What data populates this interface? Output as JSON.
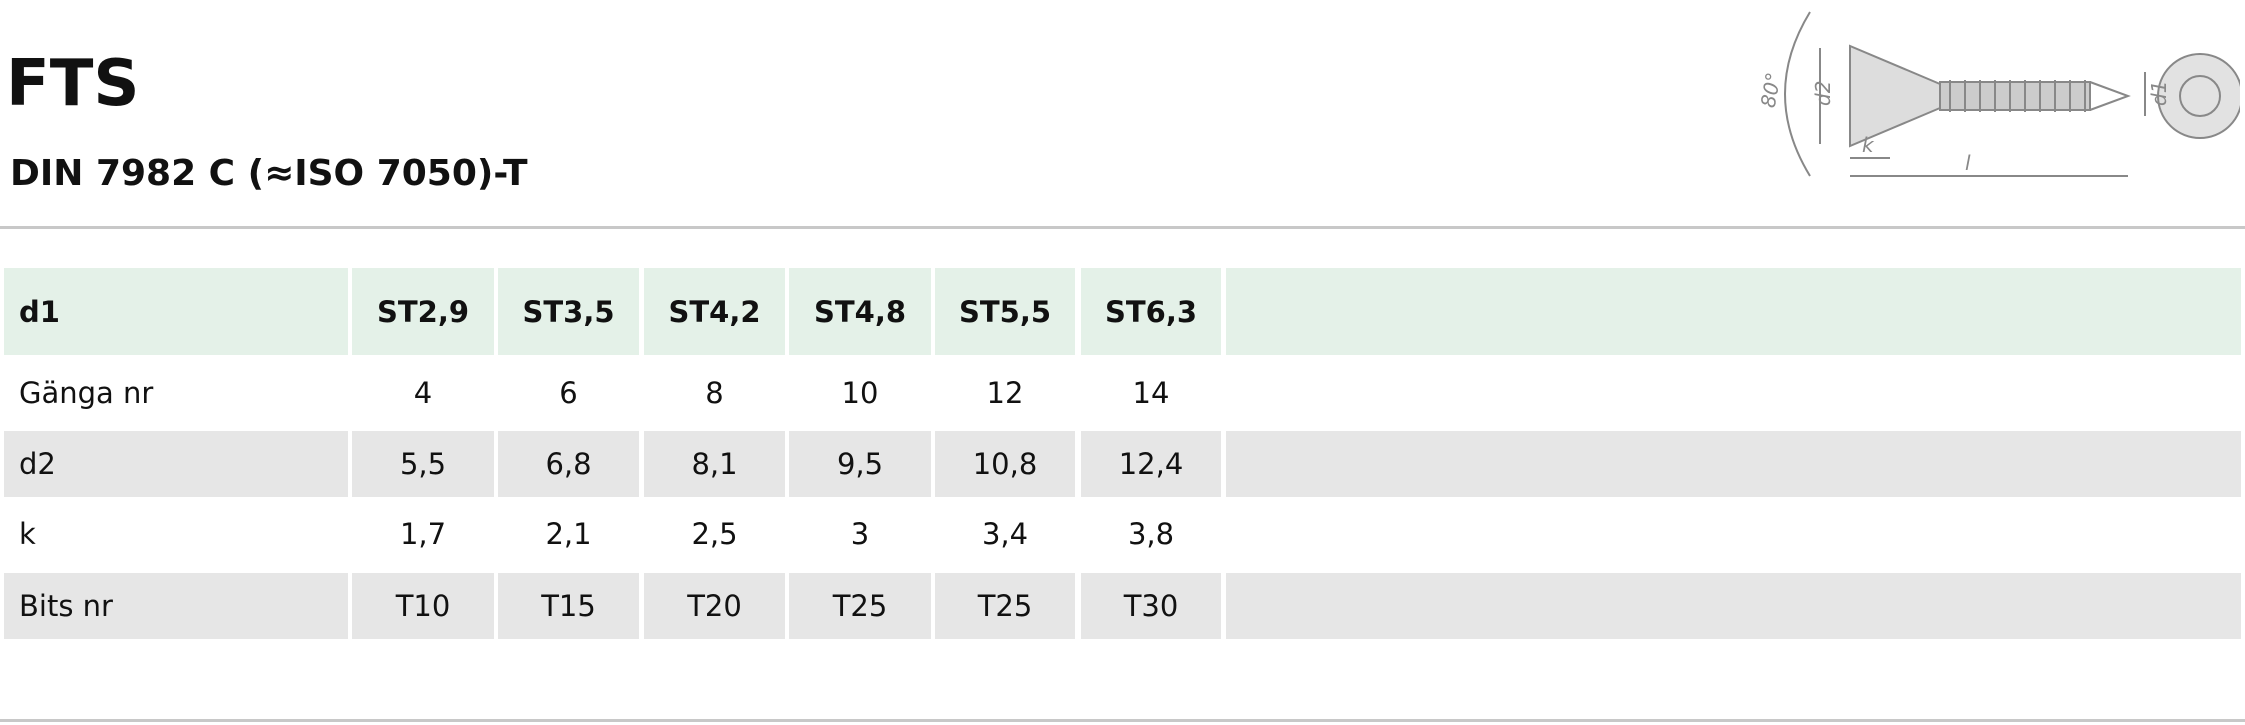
{
  "header": {
    "title": "FTS",
    "subtitle": "DIN 7982 C (≈ISO 7050)-T"
  },
  "drawing": {
    "labels": [
      "80°",
      "d2",
      "k",
      "l",
      "d1"
    ]
  },
  "table": {
    "header": [
      "d1",
      "ST2,9",
      "ST3,5",
      "ST4,2",
      "ST4,8",
      "ST5,5",
      "ST6,3"
    ],
    "rows": [
      [
        "Gänga nr",
        "4",
        "6",
        "8",
        "10",
        "12",
        "14"
      ],
      [
        "d2",
        "5,5",
        "6,8",
        "8,1",
        "9,5",
        "10,8",
        "12,4"
      ],
      [
        "k",
        "1,7",
        "2,1",
        "2,5",
        "3",
        "3,4",
        "3,8"
      ],
      [
        "Bits nr",
        "T10",
        "T15",
        "T20",
        "T25",
        "T25",
        "T30"
      ]
    ]
  }
}
